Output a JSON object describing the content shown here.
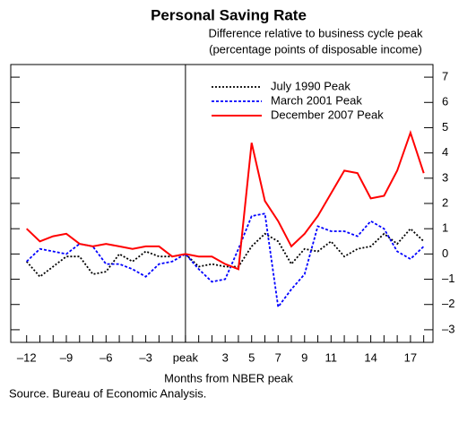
{
  "chart_data": {
    "type": "line",
    "title": "Personal Saving Rate",
    "subtitle": [
      "Difference relative to business cycle peak",
      "(percentage points of disposable income)"
    ],
    "x_label": "Months from NBER peak",
    "source": "Source. Bureau of Economic Analysis.",
    "x": [
      -12,
      -11,
      -10,
      -9,
      -8,
      -7,
      -6,
      -5,
      -4,
      -3,
      -2,
      -1,
      0,
      1,
      2,
      3,
      4,
      5,
      6,
      7,
      8,
      9,
      10,
      11,
      12,
      13,
      14,
      15,
      16,
      17,
      18
    ],
    "series": [
      {
        "name": "July 1990 Peak",
        "color": "#000000",
        "style": "dotted",
        "values": [
          -0.3,
          -0.9,
          -0.5,
          -0.1,
          -0.1,
          -0.8,
          -0.7,
          0.0,
          -0.3,
          0.1,
          -0.1,
          -0.1,
          0.0,
          -0.5,
          -0.4,
          -0.5,
          -0.5,
          0.3,
          0.8,
          0.5,
          -0.4,
          0.2,
          0.1,
          0.5,
          -0.1,
          0.2,
          0.3,
          0.8,
          0.4,
          1.0,
          0.5
        ]
      },
      {
        "name": "March 2001 Peak",
        "color": "#0000ff",
        "style": "dashed",
        "values": [
          -0.3,
          0.2,
          0.1,
          0.0,
          0.4,
          0.3,
          -0.4,
          -0.4,
          -0.6,
          -0.9,
          -0.4,
          -0.3,
          0.0,
          -0.6,
          -1.1,
          -1.0,
          0.2,
          1.5,
          1.6,
          -2.1,
          -1.4,
          -0.8,
          1.1,
          0.9,
          0.9,
          0.7,
          1.3,
          1.0,
          0.1,
          -0.2,
          0.3
        ]
      },
      {
        "name": "December 2007 Peak",
        "color": "#ff0000",
        "style": "solid",
        "values": [
          1.0,
          0.5,
          0.7,
          0.8,
          0.4,
          0.3,
          0.4,
          0.3,
          0.2,
          0.3,
          0.3,
          -0.1,
          0.0,
          -0.1,
          -0.1,
          -0.4,
          -0.6,
          4.4,
          2.1,
          1.3,
          0.3,
          0.8,
          1.5,
          2.4,
          3.3,
          3.2,
          2.2,
          2.3,
          3.3,
          4.8,
          3.2
        ]
      }
    ],
    "xlim": [
      -13.2,
      18.7
    ],
    "xticks": [
      {
        "value": -12,
        "label": "–12"
      },
      {
        "value": -9,
        "label": "–9"
      },
      {
        "value": -6,
        "label": "–6"
      },
      {
        "value": -3,
        "label": "–3"
      },
      {
        "value": 0,
        "label": "peak"
      },
      3,
      5,
      7,
      9,
      11,
      14,
      17
    ],
    "ylim": [
      -3.5,
      7.5
    ],
    "yticks": [
      {
        "value": -3,
        "label": "–3"
      },
      {
        "value": -2,
        "label": "–2"
      },
      {
        "value": -1,
        "label": "–1"
      },
      0,
      1,
      2,
      3,
      4,
      5,
      6,
      7
    ],
    "peak_line": 0,
    "legend": "top"
  }
}
